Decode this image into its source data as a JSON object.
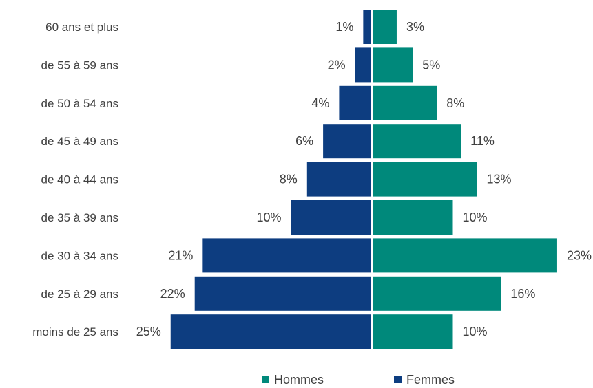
{
  "chart_data": {
    "type": "bar",
    "orientation": "horizontal",
    "layout": "population-pyramid",
    "categories": [
      "60 ans et plus",
      "de 55 à 59 ans",
      "de 50 à 54 ans",
      "de 45 à 49 ans",
      "de 40 à 44 ans",
      "de 35 à 39 ans",
      "de 30 à 34 ans",
      "de 25 à 29 ans",
      "moins de 25 ans"
    ],
    "series": [
      {
        "name": "Femmes",
        "side": "left",
        "color": "#0d3d80",
        "values": [
          1,
          2,
          4,
          6,
          8,
          10,
          21,
          22,
          25
        ],
        "labels": [
          "1%",
          "2%",
          "4%",
          "6%",
          "8%",
          "10%",
          "21%",
          "22%",
          "25%"
        ]
      },
      {
        "name": "Hommes",
        "side": "right",
        "color": "#00897b",
        "values": [
          3,
          5,
          8,
          11,
          13,
          10,
          23,
          16,
          10
        ],
        "labels": [
          "3%",
          "5%",
          "8%",
          "11%",
          "13%",
          "10%",
          "23%",
          "16%",
          "10%"
        ]
      }
    ],
    "legend": {
      "position": "bottom",
      "entries": [
        "Hommes",
        "Femmes"
      ]
    },
    "grid": false,
    "title": "",
    "xlabel": "",
    "ylabel": ""
  }
}
